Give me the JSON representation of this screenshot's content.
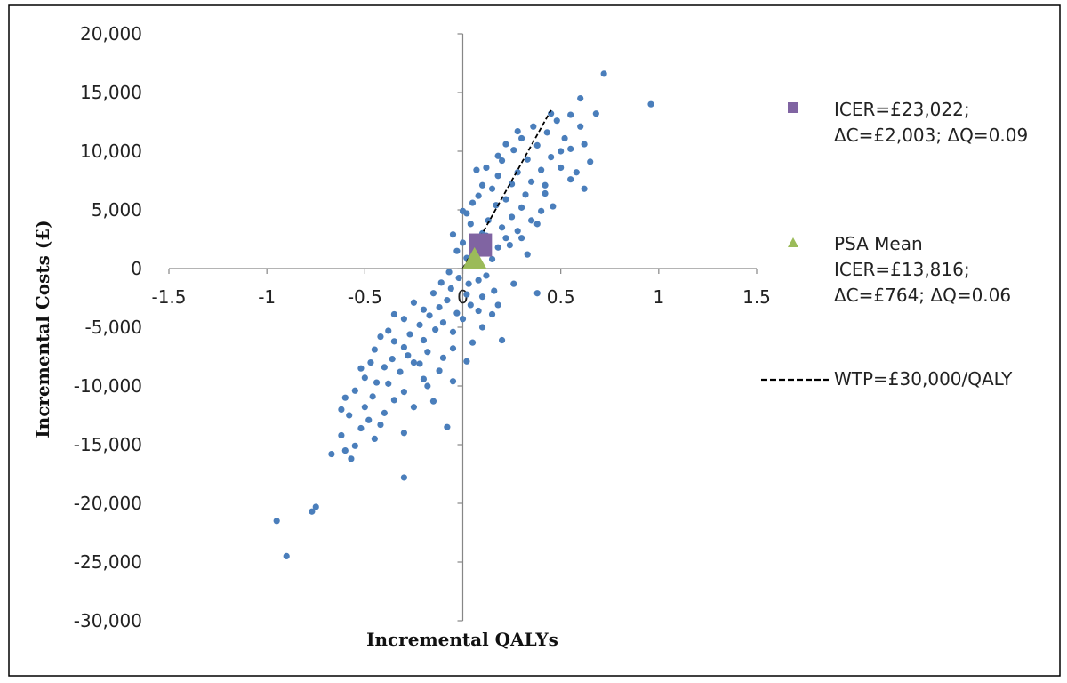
{
  "chart_data": {
    "type": "scatter",
    "title": "",
    "xlabel": "Incremental QALYs",
    "ylabel": "Incremental Costs (£)",
    "xlim": [
      -1.5,
      1.5
    ],
    "ylim": [
      -30000,
      20000
    ],
    "x_ticks": [
      -1.5,
      -1,
      -0.5,
      0,
      0.5,
      1,
      1.5
    ],
    "y_ticks": [
      20000,
      15000,
      10000,
      5000,
      0,
      -5000,
      -10000,
      -15000,
      -20000,
      -25000,
      -30000
    ],
    "x_tick_labels": [
      "-1.5",
      "-1",
      "-0.5",
      "0",
      "0.5",
      "1",
      "1.5"
    ],
    "y_tick_labels": [
      "20,000",
      "15,000",
      "10,000",
      "5,000",
      "0",
      "-5,000",
      "-10,000",
      "-15,000",
      "-20,000",
      "-25,000",
      "-30,000"
    ],
    "grid": false,
    "legend_position": "right",
    "colors": {
      "scatter": "#4a7ebb",
      "base_case": "#8064a2",
      "psa_mean": "#9bbb59",
      "wtp": "#000000",
      "frame": "#000000",
      "axis": "#868686"
    },
    "base_case": {
      "x": 0.09,
      "y": 2003,
      "legend_lines": [
        "ICER=£23,022;",
        "ΔC=£2,003; ΔQ=0.09"
      ]
    },
    "psa_mean": {
      "x": 0.06,
      "y": 764,
      "legend_lines": [
        "PSA Mean",
        "ICER=£13,816;",
        "ΔC=£764; ΔQ=0.06"
      ]
    },
    "wtp": {
      "slope": 30000,
      "x_end": 0.45,
      "label": "WTP=£30,000/QALY"
    },
    "points": [
      [
        -0.95,
        -21500
      ],
      [
        -0.9,
        -24500
      ],
      [
        -0.77,
        -20700
      ],
      [
        -0.75,
        -20300
      ],
      [
        -0.3,
        -17800
      ],
      [
        -0.08,
        -13500
      ],
      [
        -0.3,
        -14000
      ],
      [
        -0.45,
        -14500
      ],
      [
        -0.57,
        -16200
      ],
      [
        -0.6,
        -15500
      ],
      [
        -0.67,
        -15800
      ],
      [
        -0.62,
        -14200
      ],
      [
        -0.55,
        -15100
      ],
      [
        -0.52,
        -13600
      ],
      [
        -0.48,
        -12900
      ],
      [
        -0.42,
        -13300
      ],
      [
        -0.58,
        -12500
      ],
      [
        -0.62,
        -12000
      ],
      [
        -0.5,
        -11800
      ],
      [
        -0.4,
        -12300
      ],
      [
        -0.35,
        -11200
      ],
      [
        -0.46,
        -10900
      ],
      [
        -0.55,
        -10400
      ],
      [
        -0.44,
        -9700
      ],
      [
        -0.5,
        -9300
      ],
      [
        -0.38,
        -9800
      ],
      [
        -0.3,
        -10500
      ],
      [
        -0.25,
        -11800
      ],
      [
        -0.15,
        -11300
      ],
      [
        -0.05,
        -9600
      ],
      [
        -0.2,
        -9400
      ],
      [
        -0.32,
        -8800
      ],
      [
        -0.4,
        -8400
      ],
      [
        -0.47,
        -8000
      ],
      [
        -0.36,
        -7700
      ],
      [
        -0.28,
        -7400
      ],
      [
        -0.22,
        -8100
      ],
      [
        -0.12,
        -8700
      ],
      [
        -0.18,
        -7100
      ],
      [
        -0.3,
        -6700
      ],
      [
        -0.35,
        -6200
      ],
      [
        -0.42,
        -5800
      ],
      [
        -0.38,
        -5300
      ],
      [
        -0.27,
        -5600
      ],
      [
        -0.2,
        -6100
      ],
      [
        -0.1,
        -7600
      ],
      [
        -0.05,
        -6800
      ],
      [
        0.02,
        -7900
      ],
      [
        -0.14,
        -5200
      ],
      [
        -0.22,
        -4800
      ],
      [
        -0.3,
        -4300
      ],
      [
        -0.17,
        -4000
      ],
      [
        -0.1,
        -4600
      ],
      [
        -0.05,
        -5400
      ],
      [
        0.05,
        -6300
      ],
      [
        -0.12,
        -3300
      ],
      [
        -0.2,
        -3500
      ],
      [
        -0.08,
        -2700
      ],
      [
        -0.15,
        -2100
      ],
      [
        -0.03,
        -3800
      ],
      [
        0.0,
        -4300
      ],
      [
        0.04,
        -3100
      ],
      [
        -0.06,
        -1700
      ],
      [
        -0.11,
        -1200
      ],
      [
        0.02,
        -2200
      ],
      [
        0.08,
        -3600
      ],
      [
        0.1,
        -5000
      ],
      [
        0.15,
        -3900
      ],
      [
        -0.02,
        -800
      ],
      [
        -0.07,
        -300
      ],
      [
        0.03,
        -1300
      ],
      [
        0.1,
        -2400
      ],
      [
        0.18,
        -3100
      ],
      [
        0.2,
        -6100
      ],
      [
        0.12,
        -600
      ],
      [
        0.05,
        300
      ],
      [
        0.02,
        900
      ],
      [
        -0.03,
        1500
      ],
      [
        0.0,
        2200
      ],
      [
        0.08,
        1700
      ],
      [
        0.15,
        800
      ],
      [
        0.18,
        1800
      ],
      [
        0.22,
        2600
      ],
      [
        0.1,
        3000
      ],
      [
        0.04,
        3800
      ],
      [
        0.02,
        4700
      ],
      [
        0.13,
        4100
      ],
      [
        0.2,
        3500
      ],
      [
        0.25,
        4400
      ],
      [
        0.28,
        3200
      ],
      [
        0.17,
        5400
      ],
      [
        0.08,
        6200
      ],
      [
        0.15,
        6800
      ],
      [
        0.22,
        5900
      ],
      [
        0.3,
        5200
      ],
      [
        0.35,
        4100
      ],
      [
        0.38,
        3800
      ],
      [
        0.32,
        6300
      ],
      [
        0.25,
        7200
      ],
      [
        0.18,
        7900
      ],
      [
        0.12,
        8600
      ],
      [
        0.2,
        9200
      ],
      [
        0.28,
        8200
      ],
      [
        0.35,
        7400
      ],
      [
        0.42,
        6400
      ],
      [
        0.46,
        5300
      ],
      [
        0.4,
        8400
      ],
      [
        0.33,
        9300
      ],
      [
        0.26,
        10100
      ],
      [
        0.3,
        11100
      ],
      [
        0.38,
        10500
      ],
      [
        0.45,
        9500
      ],
      [
        0.5,
        8600
      ],
      [
        0.55,
        7600
      ],
      [
        0.43,
        11600
      ],
      [
        0.48,
        12600
      ],
      [
        0.52,
        11100
      ],
      [
        0.55,
        13100
      ],
      [
        0.6,
        12100
      ],
      [
        0.62,
        10600
      ],
      [
        0.68,
        13200
      ],
      [
        0.6,
        14500
      ],
      [
        0.72,
        16600
      ],
      [
        0.96,
        14000
      ],
      [
        0.58,
        8200
      ],
      [
        0.62,
        6800
      ],
      [
        0.5,
        10000
      ],
      [
        0.45,
        13200
      ],
      [
        0.36,
        12100
      ],
      [
        0.28,
        11700
      ],
      [
        0.22,
        10600
      ],
      [
        0.18,
        9600
      ],
      [
        0.1,
        7100
      ],
      [
        0.05,
        5600
      ],
      [
        0.0,
        4900
      ],
      [
        -0.05,
        2900
      ],
      [
        0.3,
        2600
      ],
      [
        0.4,
        4900
      ],
      [
        0.55,
        10200
      ],
      [
        0.65,
        9100
      ],
      [
        0.26,
        -1300
      ],
      [
        0.38,
        -2100
      ],
      [
        0.16,
        -1900
      ],
      [
        0.08,
        -1000
      ],
      [
        -0.25,
        -2900
      ],
      [
        -0.35,
        -3900
      ],
      [
        -0.45,
        -6900
      ],
      [
        -0.52,
        -8500
      ],
      [
        -0.6,
        -11000
      ],
      [
        -0.25,
        -8000
      ],
      [
        -0.18,
        -10000
      ],
      [
        0.07,
        8400
      ],
      [
        0.24,
        2000
      ],
      [
        0.33,
        1200
      ],
      [
        0.12,
        2800
      ],
      [
        0.42,
        7100
      ]
    ]
  }
}
